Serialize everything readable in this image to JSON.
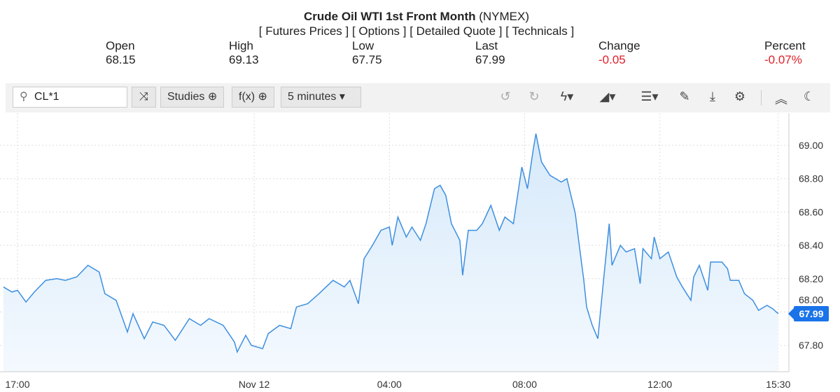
{
  "header": {
    "title_bold": "Crude Oil WTI 1st Front Month",
    "title_rest": " (NYMEX)",
    "links": [
      "[ Futures Prices ]",
      "[ Options ]",
      "[ Detailed Quote ]",
      "[ Technicals ]"
    ]
  },
  "stats": [
    {
      "label": "Open",
      "value": "68.15"
    },
    {
      "label": "High",
      "value": "69.13"
    },
    {
      "label": "Low",
      "value": "67.75"
    },
    {
      "label": "Last",
      "value": "67.99"
    },
    {
      "label": "Change",
      "value": "-0.05"
    },
    {
      "label": "Percent",
      "value": "-0.07%"
    }
  ],
  "toolbar": {
    "symbol": "CL*1",
    "studies": "Studies ⊕",
    "fx": "f(x) ⊕",
    "interval": "5 minutes ▾",
    "icons": [
      "undo-icon",
      "redo-icon",
      "lightning-icon",
      "chart-type-icon",
      "layout-icon",
      "pencil-icon",
      "download-icon",
      "gear-icon",
      "collapse-icon",
      "moon-icon"
    ]
  },
  "colors": {
    "line": "#3d8fe0",
    "fill": "#d6e9fa",
    "negative": "#e0202a",
    "badge": "#1a73e8"
  },
  "chart_data": {
    "type": "area",
    "ylim": [
      67.7,
      69.2
    ],
    "y_ticks": [
      "67.80",
      "68.00",
      "68.20",
      "68.40",
      "68.60",
      "68.80",
      "69.00"
    ],
    "x_ticks": [
      {
        "t": "17:00",
        "label": "17:00"
      },
      {
        "t": "00:00",
        "label": "Nov 12"
      },
      {
        "t": "04:00",
        "label": "04:00"
      },
      {
        "t": "08:00",
        "label": "08:00"
      },
      {
        "t": "12:00",
        "label": "12:00"
      },
      {
        "t": "15:30",
        "label": "15:30"
      }
    ],
    "last_label": "67.99",
    "grid": true,
    "points": [
      [
        "16:35",
        68.15
      ],
      [
        "16:50",
        68.12
      ],
      [
        "17:00",
        68.13
      ],
      [
        "17:15",
        68.06
      ],
      [
        "17:30",
        68.12
      ],
      [
        "17:50",
        68.19
      ],
      [
        "18:10",
        68.2
      ],
      [
        "18:25",
        68.19
      ],
      [
        "18:45",
        68.21
      ],
      [
        "19:05",
        68.28
      ],
      [
        "19:25",
        68.24
      ],
      [
        "19:35",
        68.11
      ],
      [
        "19:55",
        68.07
      ],
      [
        "20:15",
        67.88
      ],
      [
        "20:25",
        67.99
      ],
      [
        "20:45",
        67.84
      ],
      [
        "21:00",
        67.94
      ],
      [
        "21:20",
        67.92
      ],
      [
        "21:40",
        67.83
      ],
      [
        "22:05",
        67.96
      ],
      [
        "22:25",
        67.92
      ],
      [
        "22:40",
        67.96
      ],
      [
        "23:05",
        67.92
      ],
      [
        "23:25",
        67.82
      ],
      [
        "23:30",
        67.76
      ],
      [
        "23:45",
        67.86
      ],
      [
        "23:55",
        67.8
      ],
      [
        "00:15",
        67.78
      ],
      [
        "00:25",
        67.87
      ],
      [
        "00:45",
        67.92
      ],
      [
        "01:05",
        67.9
      ],
      [
        "01:15",
        68.03
      ],
      [
        "01:35",
        68.05
      ],
      [
        "01:55",
        68.11
      ],
      [
        "02:20",
        68.19
      ],
      [
        "02:40",
        68.15
      ],
      [
        "02:50",
        68.19
      ],
      [
        "03:05",
        68.05
      ],
      [
        "03:15",
        68.32
      ],
      [
        "03:30",
        68.4
      ],
      [
        "03:45",
        68.49
      ],
      [
        "04:00",
        68.51
      ],
      [
        "04:05",
        68.4
      ],
      [
        "04:15",
        68.57
      ],
      [
        "04:30",
        68.45
      ],
      [
        "04:40",
        68.51
      ],
      [
        "04:55",
        68.43
      ],
      [
        "05:05",
        68.53
      ],
      [
        "05:20",
        68.74
      ],
      [
        "05:30",
        68.76
      ],
      [
        "05:40",
        68.7
      ],
      [
        "05:50",
        68.53
      ],
      [
        "06:05",
        68.43
      ],
      [
        "06:10",
        68.22
      ],
      [
        "06:20",
        68.49
      ],
      [
        "06:35",
        68.49
      ],
      [
        "06:45",
        68.53
      ],
      [
        "07:00",
        68.64
      ],
      [
        "07:15",
        68.49
      ],
      [
        "07:25",
        68.57
      ],
      [
        "07:40",
        68.53
      ],
      [
        "07:55",
        68.87
      ],
      [
        "08:05",
        68.74
      ],
      [
        "08:15",
        68.97
      ],
      [
        "08:20",
        69.07
      ],
      [
        "08:30",
        68.9
      ],
      [
        "08:45",
        68.82
      ],
      [
        "09:05",
        68.78
      ],
      [
        "09:15",
        68.8
      ],
      [
        "09:30",
        68.59
      ],
      [
        "09:35",
        68.45
      ],
      [
        "09:45",
        68.19
      ],
      [
        "09:50",
        68.03
      ],
      [
        "10:00",
        67.92
      ],
      [
        "10:10",
        67.84
      ],
      [
        "10:20",
        68.19
      ],
      [
        "10:30",
        68.53
      ],
      [
        "10:35",
        68.28
      ],
      [
        "10:50",
        68.4
      ],
      [
        "11:00",
        68.36
      ],
      [
        "11:15",
        68.38
      ],
      [
        "11:25",
        68.17
      ],
      [
        "11:30",
        68.38
      ],
      [
        "11:45",
        68.32
      ],
      [
        "11:50",
        68.45
      ],
      [
        "12:00",
        68.32
      ],
      [
        "12:15",
        68.36
      ],
      [
        "12:30",
        68.21
      ],
      [
        "12:40",
        68.15
      ],
      [
        "12:55",
        68.07
      ],
      [
        "13:00",
        68.21
      ],
      [
        "13:10",
        68.28
      ],
      [
        "13:25",
        68.13
      ],
      [
        "13:30",
        68.3
      ],
      [
        "13:50",
        68.3
      ],
      [
        "14:00",
        68.26
      ],
      [
        "14:05",
        68.19
      ],
      [
        "14:20",
        68.19
      ],
      [
        "14:30",
        68.11
      ],
      [
        "14:45",
        68.07
      ],
      [
        "14:55",
        68.01
      ],
      [
        "15:10",
        68.04
      ],
      [
        "15:20",
        68.02
      ],
      [
        "15:30",
        67.99
      ]
    ]
  }
}
